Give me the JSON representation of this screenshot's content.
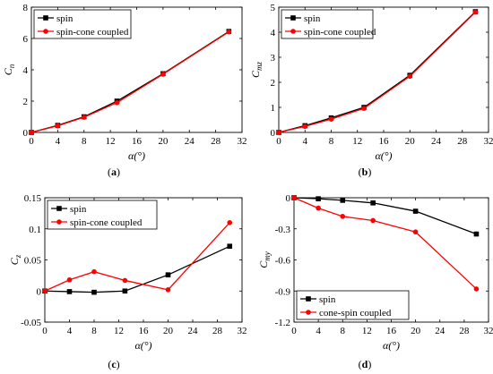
{
  "chart_data": [
    {
      "type": "line",
      "x": [
        0,
        4,
        8,
        13,
        20,
        30
      ],
      "xlim": [
        0,
        32
      ],
      "xticks": [
        "0",
        "4",
        "8",
        "12",
        "16",
        "20",
        "24",
        "28",
        "32"
      ],
      "xlabel": "α(°)",
      "ylim": [
        0,
        8
      ],
      "yticks": [
        "0",
        "2",
        "4",
        "6",
        "8"
      ],
      "ylabel": "C",
      "ylabel_sub": "n",
      "legend": "top-left",
      "caption": "(a)",
      "series": [
        {
          "name": "spin",
          "marker": "square",
          "color": "#000000",
          "values": [
            0,
            0.45,
            1.0,
            2.0,
            3.75,
            6.45
          ]
        },
        {
          "name": "spin-cone coupled",
          "marker": "circle",
          "color": "#ff0000",
          "values": [
            0,
            0.42,
            0.97,
            1.9,
            3.72,
            6.42
          ]
        }
      ]
    },
    {
      "type": "line",
      "x": [
        0,
        4,
        8,
        13,
        20,
        30
      ],
      "xlim": [
        0,
        32
      ],
      "xticks": [
        "0",
        "4",
        "8",
        "12",
        "16",
        "20",
        "24",
        "28",
        "32"
      ],
      "xlabel": "α(°)",
      "ylim": [
        0,
        5
      ],
      "yticks": [
        "0",
        "1",
        "2",
        "3",
        "4",
        "5"
      ],
      "ylabel": "C",
      "ylabel_sub": "mz",
      "legend": "top-left",
      "caption": "(b)",
      "series": [
        {
          "name": "spin",
          "marker": "square",
          "color": "#000000",
          "values": [
            0,
            0.27,
            0.58,
            1.0,
            2.28,
            4.82
          ]
        },
        {
          "name": "spin-cone coupled",
          "marker": "circle",
          "color": "#ff0000",
          "values": [
            0,
            0.24,
            0.53,
            0.96,
            2.24,
            4.8
          ]
        }
      ]
    },
    {
      "type": "line",
      "x": [
        0,
        4,
        8,
        13,
        20,
        30
      ],
      "xlim": [
        0,
        32
      ],
      "xticks": [
        "0",
        "4",
        "8",
        "12",
        "16",
        "20",
        "24",
        "28",
        "32"
      ],
      "xlabel": "α(°)",
      "ylim": [
        -0.05,
        0.15
      ],
      "yticks": [
        "-0.05",
        "0",
        "0.05",
        "0.1",
        "0.15"
      ],
      "ylabel": "C",
      "ylabel_sub": "z",
      "legend": "top-left",
      "caption": "(c)",
      "series": [
        {
          "name": "spin",
          "marker": "square",
          "color": "#000000",
          "values": [
            0,
            -0.001,
            -0.002,
            0,
            0.026,
            0.072
          ]
        },
        {
          "name": "spin-cone coupled",
          "marker": "circle",
          "color": "#ff0000",
          "values": [
            0,
            0.018,
            0.031,
            0.017,
            0.002,
            0.11
          ]
        }
      ]
    },
    {
      "type": "line",
      "x": [
        0,
        4,
        8,
        13,
        20,
        30
      ],
      "xlim": [
        0,
        32
      ],
      "xticks": [
        "0",
        "4",
        "8",
        "12",
        "16",
        "20",
        "24",
        "28",
        "32"
      ],
      "xlabel": "α(°)",
      "ylim": [
        -1.2,
        0
      ],
      "yticks": [
        "-1.2",
        "-0.9",
        "-0.6",
        "-0.3",
        "0"
      ],
      "ylabel": "C",
      "ylabel_sub": "my",
      "legend": "bottom-left",
      "caption": "(d)",
      "series": [
        {
          "name": "spin",
          "marker": "square",
          "color": "#000000",
          "values": [
            0,
            -0.01,
            -0.025,
            -0.05,
            -0.13,
            -0.35
          ]
        },
        {
          "name": "cone-spin coupled",
          "marker": "circle",
          "color": "#ff0000",
          "values": [
            0,
            -0.1,
            -0.18,
            -0.22,
            -0.33,
            -0.88
          ]
        }
      ]
    }
  ]
}
